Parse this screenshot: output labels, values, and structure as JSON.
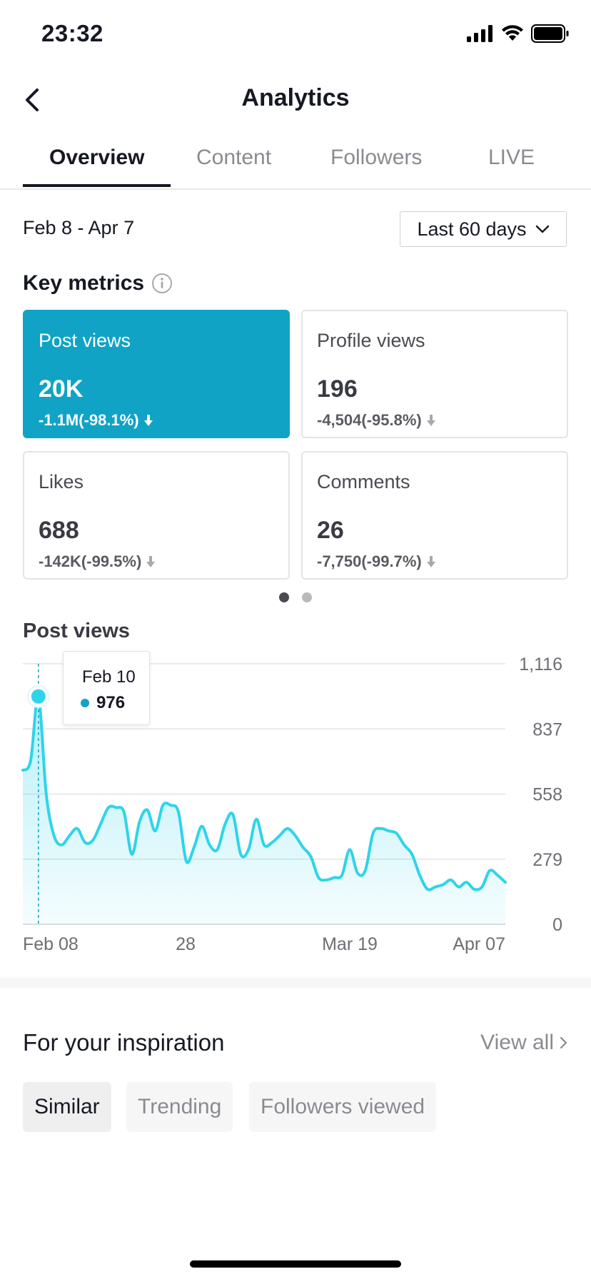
{
  "status_bar": {
    "time": "23:32"
  },
  "header": {
    "title": "Analytics"
  },
  "tabs": [
    {
      "label": "Overview",
      "active": true
    },
    {
      "label": "Content",
      "active": false
    },
    {
      "label": "Followers",
      "active": false
    },
    {
      "label": "LIVE",
      "active": false
    }
  ],
  "date_range": "Feb 8 - Apr 7",
  "period_selector": {
    "label": "Last 60 days"
  },
  "key_metrics": {
    "title": "Key metrics",
    "cards": [
      {
        "label": "Post views",
        "value": "20K",
        "delta": "-1.1M(-98.1%)",
        "active": true
      },
      {
        "label": "Profile views",
        "value": "196",
        "delta": "-4,504(-95.8%)",
        "active": false
      },
      {
        "label": "Likes",
        "value": "688",
        "delta": "-142K(-99.5%)",
        "active": false
      },
      {
        "label": "Comments",
        "value": "26",
        "delta": "-7,750(-99.7%)",
        "active": false
      }
    ],
    "page_dots": {
      "count": 2,
      "active": 0
    }
  },
  "chart_data": {
    "type": "area",
    "title": "Post views",
    "x_tick_labels": [
      "Feb 08",
      "28",
      "Mar 19",
      "Apr 07"
    ],
    "y_tick_labels": [
      "1,116",
      "837",
      "558",
      "279",
      "0"
    ],
    "ylim": [
      0,
      1116
    ],
    "grid": true,
    "color": "#2fd4ea",
    "values": [
      660,
      700,
      976,
      560,
      380,
      340,
      380,
      410,
      350,
      360,
      430,
      500,
      500,
      480,
      300,
      440,
      490,
      400,
      510,
      510,
      480,
      270,
      330,
      420,
      340,
      320,
      430,
      470,
      300,
      320,
      450,
      340,
      350,
      380,
      410,
      380,
      330,
      290,
      200,
      190,
      200,
      210,
      320,
      220,
      230,
      390,
      410,
      400,
      390,
      340,
      300,
      210,
      150,
      160,
      170,
      190,
      160,
      180,
      150,
      160,
      230,
      210,
      180
    ]
  },
  "tooltip": {
    "date": "Feb 10",
    "value": "976"
  },
  "inspiration": {
    "title": "For your inspiration",
    "view_all": "View all",
    "chips": [
      {
        "label": "Similar",
        "active": true
      },
      {
        "label": "Trending",
        "active": false
      },
      {
        "label": "Followers viewed",
        "active": false
      }
    ]
  }
}
